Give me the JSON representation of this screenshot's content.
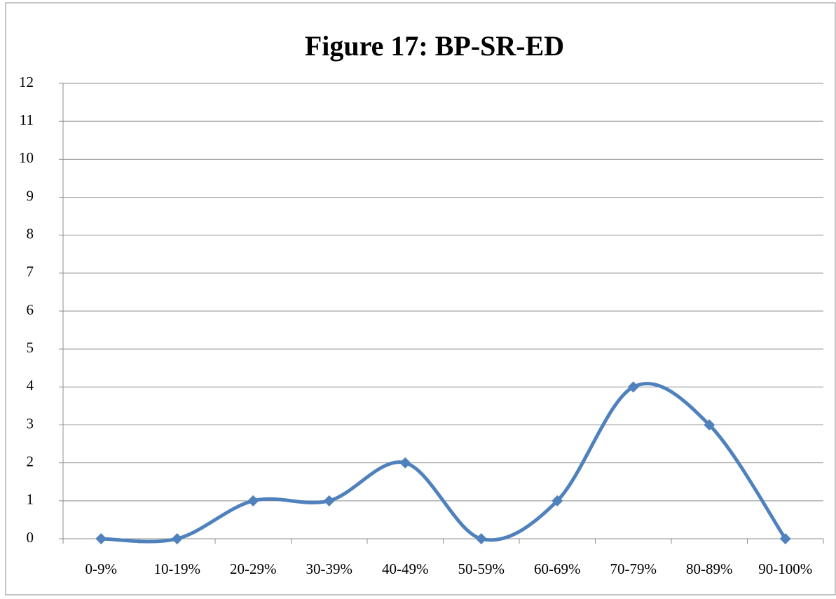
{
  "chart_data": {
    "type": "line",
    "title": "Figure 17: BP-SR-ED",
    "categories": [
      "0-9%",
      "10-19%",
      "20-29%",
      "30-39%",
      "40-49%",
      "50-59%",
      "60-69%",
      "70-79%",
      "80-89%",
      "90-100%"
    ],
    "values": [
      0,
      0,
      1,
      1,
      2,
      0,
      1,
      4,
      3,
      0
    ],
    "color": "#4f81bd",
    "smooth": true,
    "ylim": [
      0,
      12
    ],
    "yticks": [
      0,
      1,
      2,
      3,
      4,
      5,
      6,
      7,
      8,
      9,
      10,
      11,
      12
    ],
    "grid": true
  }
}
